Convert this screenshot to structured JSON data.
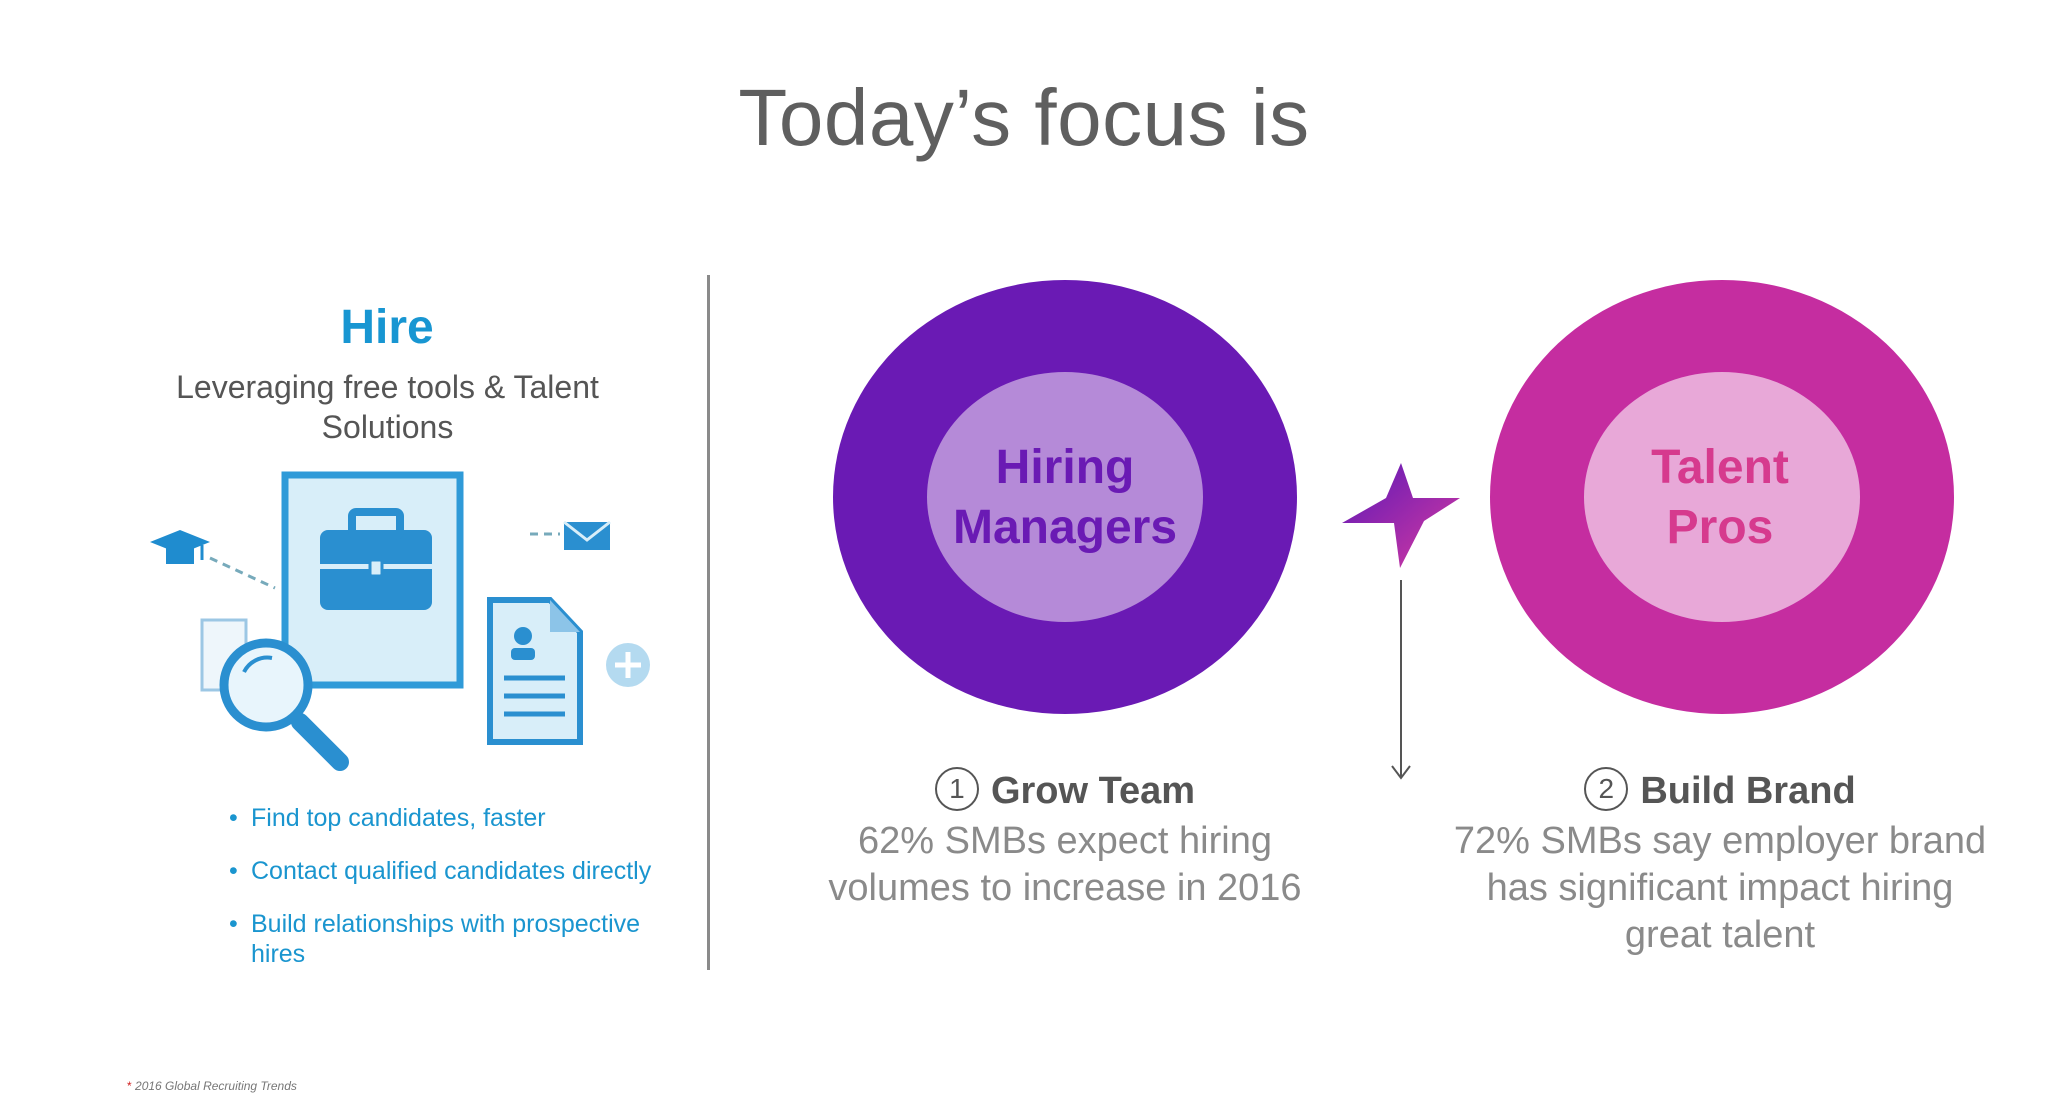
{
  "title": "Today’s focus is",
  "hire": {
    "title": "Hire",
    "subtitle": "Leveraging free tools & Talent Solutions",
    "bullets": [
      "Find top candidates, faster",
      "Contact qualified candidates directly",
      "Build relationships with prospective hires"
    ]
  },
  "circles": {
    "hiring_managers": {
      "line1": "Hiring",
      "line2": "Managers",
      "color": "#6a1ab4"
    },
    "talent_pros": {
      "line1": "Talent",
      "line2": "Pros",
      "color": "#c52da0"
    }
  },
  "grow": {
    "number": "1",
    "heading": "Grow Team",
    "stat": "62% SMBs expect hiring volumes to increase in 2016"
  },
  "build": {
    "number": "2",
    "heading": "Build Brand",
    "stat": "72% SMBs say employer brand has significant impact hiring great talent"
  },
  "footnote": {
    "asterisk": "*",
    "text": "2016 Global Recruiting Trends"
  },
  "icons": [
    "graduation-cap-icon",
    "envelope-icon",
    "briefcase-icon",
    "magnifier-icon",
    "profile-document-icon",
    "plus-icon",
    "star-icon",
    "down-arrow-icon"
  ]
}
